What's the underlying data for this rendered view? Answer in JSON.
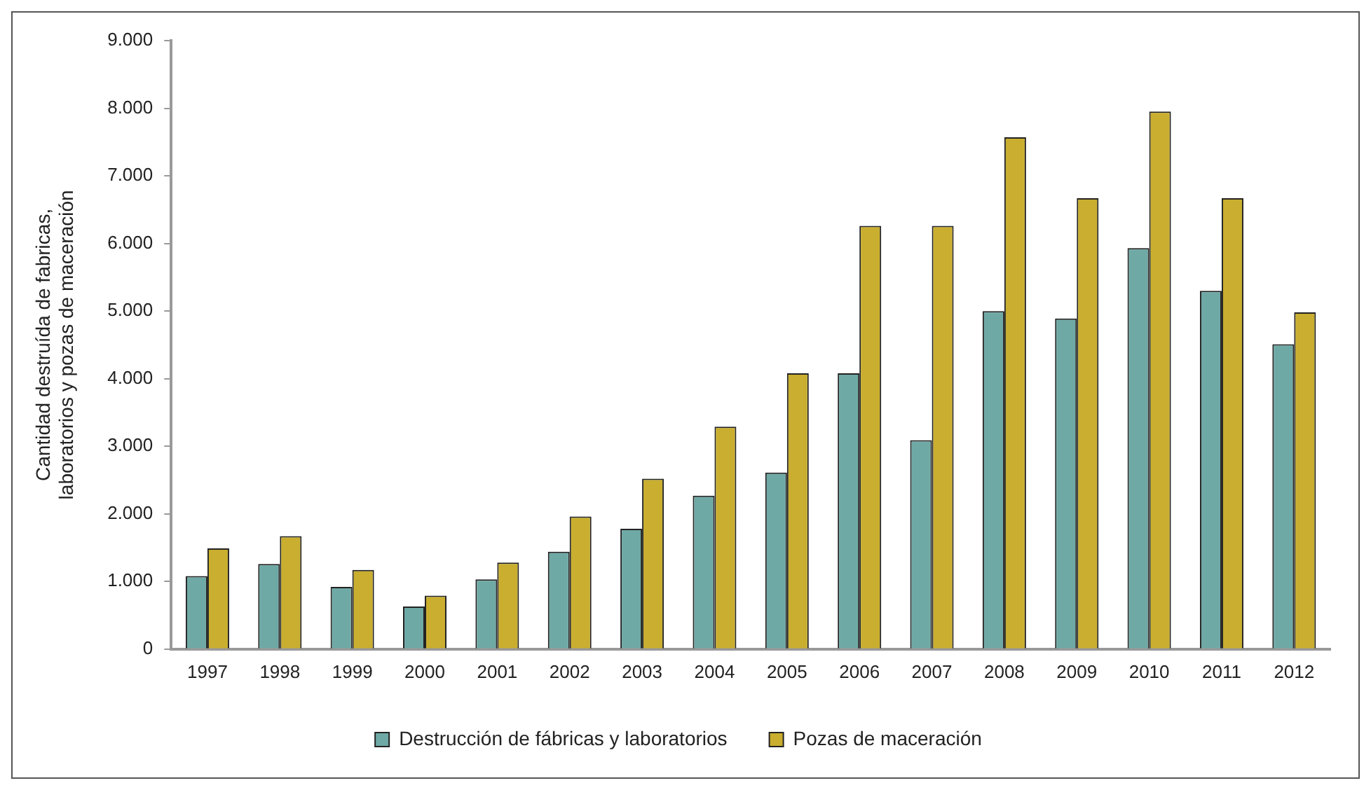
{
  "chart_data": {
    "type": "bar",
    "ylabel": "Cantidad destruída de fabricas,\nlaboratorios y pozas de maceración",
    "categories": [
      "1997",
      "1998",
      "1999",
      "2000",
      "2001",
      "2002",
      "2003",
      "2004",
      "2005",
      "2006",
      "2007",
      "2008",
      "2009",
      "2010",
      "2011",
      "2012"
    ],
    "series": [
      {
        "name": "Destrucción de fábricas y laboratorios",
        "color": "#6fa9a5",
        "values": [
          1080,
          1260,
          920,
          630,
          1030,
          1440,
          1780,
          2270,
          2610,
          4080,
          3090,
          5000,
          4890,
          5930,
          5300,
          4510
        ]
      },
      {
        "name": "Pozas de maceración",
        "color": "#c9ae2f",
        "values": [
          1490,
          1670,
          1170,
          790,
          1280,
          1960,
          2520,
          3290,
          4080,
          6260,
          6260,
          7570,
          6670,
          7950,
          6670,
          4980
        ]
      }
    ],
    "ylim": [
      0,
      9000
    ],
    "yticks": [
      0,
      {
        "value": 1000,
        "label": "1.000"
      },
      {
        "value": 2000,
        "label": "2.000"
      },
      {
        "value": 3000,
        "label": "3.000"
      },
      {
        "value": 4000,
        "label": "4.000"
      },
      {
        "value": 5000,
        "label": "5.000"
      },
      {
        "value": 6000,
        "label": "6.000"
      },
      {
        "value": 7000,
        "label": "7.000"
      },
      {
        "value": 8000,
        "label": "8.000"
      },
      {
        "value": 9000,
        "label": "9.000"
      }
    ],
    "grid": false,
    "legend": "bottom"
  }
}
